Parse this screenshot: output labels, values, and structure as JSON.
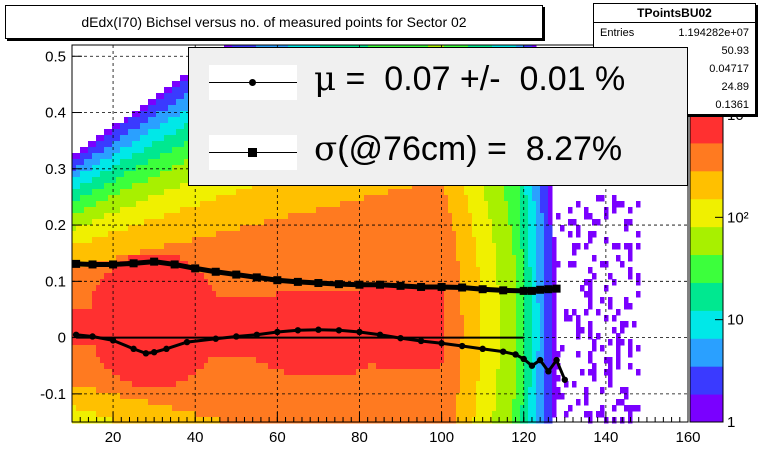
{
  "title": "dEdx(I70) Bichsel versus no. of measured points for Sector 02",
  "stats": {
    "name": "TPointsBU02",
    "rows": [
      {
        "label": "Entries",
        "value": "1.194282e+07"
      },
      {
        "label": "",
        "value": "50.93"
      },
      {
        "label": "",
        "value": "0.04717"
      },
      {
        "label": "",
        "value": "24.89"
      },
      {
        "label": "",
        "value": "0.1361"
      }
    ]
  },
  "legend": {
    "mu_symbol": "μ",
    "mu_text": " =  0.07 +/-  0.01 %",
    "sigma_symbol": "σ",
    "sigma_text": "(@76cm) =  8.27%"
  },
  "chart_data": {
    "type": "heatmap",
    "title": "dEdx(I70) Bichsel versus no. of measured points for Sector 02",
    "xlabel": "",
    "ylabel": "",
    "xlim": [
      10,
      160
    ],
    "ylim": [
      -0.15,
      0.52
    ],
    "x_ticks": [
      20,
      40,
      60,
      80,
      100,
      120,
      140,
      160
    ],
    "y_ticks": [
      -0.1,
      0,
      0.1,
      0.2,
      0.3,
      0.4,
      0.5
    ],
    "x_tick_labels": [
      "20",
      "40",
      "60",
      "80",
      "100",
      "120",
      "140",
      "160"
    ],
    "y_tick_labels": [
      "-0.1",
      "0",
      "0.1",
      "0.2",
      "0.3",
      "0.4",
      "0.5"
    ],
    "grid": true,
    "colorbar": {
      "scale": "log",
      "min": 1,
      "max": 1000,
      "labels": [
        "1",
        "10",
        "10²",
        "10³"
      ]
    },
    "colors": {
      "palette": [
        "#ffffff",
        "#7a00ff",
        "#3a3aff",
        "#2aa0ff",
        "#00e8e8",
        "#00e890",
        "#3cff3c",
        "#a8f000",
        "#f0f000",
        "#ffc000",
        "#ff7a20",
        "#ff3030"
      ],
      "marker": "#000000"
    },
    "series": [
      {
        "name": "σ",
        "marker": "square",
        "x": [
          11,
          15,
          20,
          25,
          30,
          35,
          40,
          45,
          50,
          55,
          60,
          65,
          70,
          75,
          80,
          85,
          90,
          95,
          100,
          105,
          110,
          115,
          120,
          122,
          124,
          126,
          128
        ],
        "y": [
          0.131,
          0.13,
          0.13,
          0.132,
          0.135,
          0.13,
          0.123,
          0.117,
          0.112,
          0.107,
          0.102,
          0.099,
          0.097,
          0.095,
          0.094,
          0.094,
          0.092,
          0.09,
          0.09,
          0.089,
          0.086,
          0.084,
          0.083,
          0.083,
          0.085,
          0.086,
          0.087
        ]
      },
      {
        "name": "μ",
        "marker": "circle",
        "x": [
          11,
          15,
          20,
          25,
          28,
          30,
          33,
          38,
          45,
          50,
          55,
          60,
          65,
          70,
          75,
          80,
          85,
          90,
          95,
          100,
          105,
          110,
          115,
          118,
          120,
          122,
          124,
          126,
          128,
          130
        ],
        "y": [
          0.005,
          0.002,
          -0.005,
          -0.02,
          -0.028,
          -0.026,
          -0.02,
          -0.008,
          -0.002,
          0.002,
          0.005,
          0.01,
          0.013,
          0.014,
          0.013,
          0.01,
          0.005,
          -0.001,
          -0.006,
          -0.01,
          -0.015,
          -0.02,
          -0.025,
          -0.03,
          -0.038,
          -0.05,
          -0.04,
          -0.06,
          -0.04,
          -0.075
        ]
      }
    ]
  }
}
